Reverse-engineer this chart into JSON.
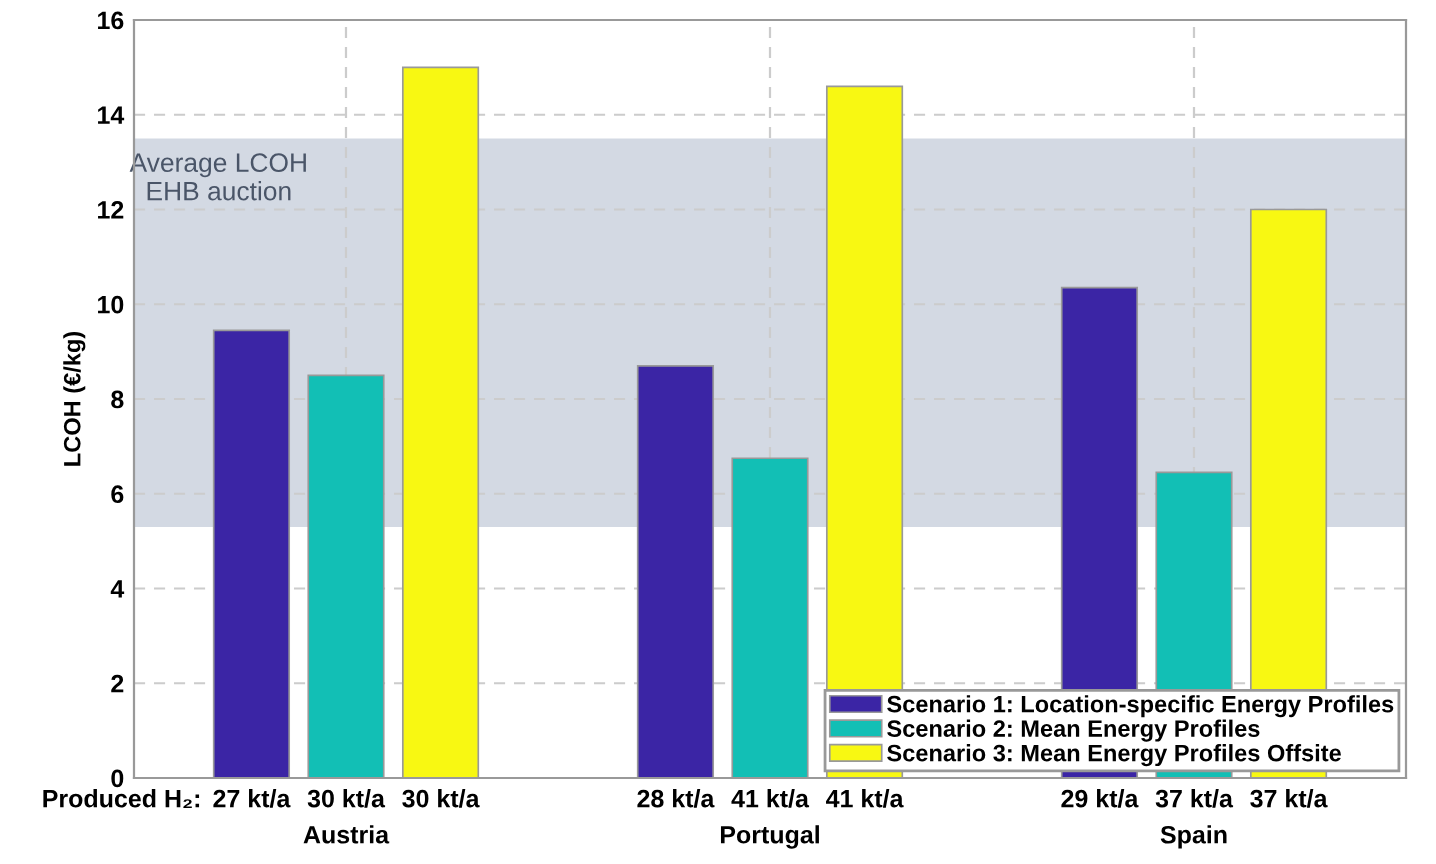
{
  "chart_data": {
    "type": "bar",
    "ylabel": "LCOH (€/kg)",
    "categories": [
      "Austria",
      "Portugal",
      "Spain"
    ],
    "series": [
      {
        "name": "Scenario 1: Location-specific Energy Profiles",
        "color": "#3b25a5",
        "values": [
          9.45,
          8.7,
          10.35
        ]
      },
      {
        "name": "Scenario 2: Mean Energy Profiles",
        "color": "#12bfb5",
        "values": [
          8.5,
          6.75,
          6.45
        ]
      },
      {
        "name": "Scenario 3: Mean Energy Profiles Offsite",
        "color": "#f8f812",
        "values": [
          15.0,
          14.6,
          12.0
        ]
      }
    ],
    "ylim": [
      0,
      16
    ],
    "yticks": [
      0,
      2,
      4,
      6,
      8,
      10,
      12,
      14,
      16
    ],
    "bands": [
      {
        "axis": "y",
        "from": 5.3,
        "to": 13.5,
        "label": "Average LCOH\nEHB auction",
        "color": "#d3d9e3"
      }
    ],
    "annotations": [
      "Produced H₂:",
      "27 kt/a",
      "30 kt/a",
      "30 kt/a",
      "28 kt/a",
      "41 kt/a",
      "41 kt/a",
      "29 kt/a",
      "37 kt/a",
      "37 kt/a"
    ],
    "grid": true,
    "legend": "bottom right"
  }
}
